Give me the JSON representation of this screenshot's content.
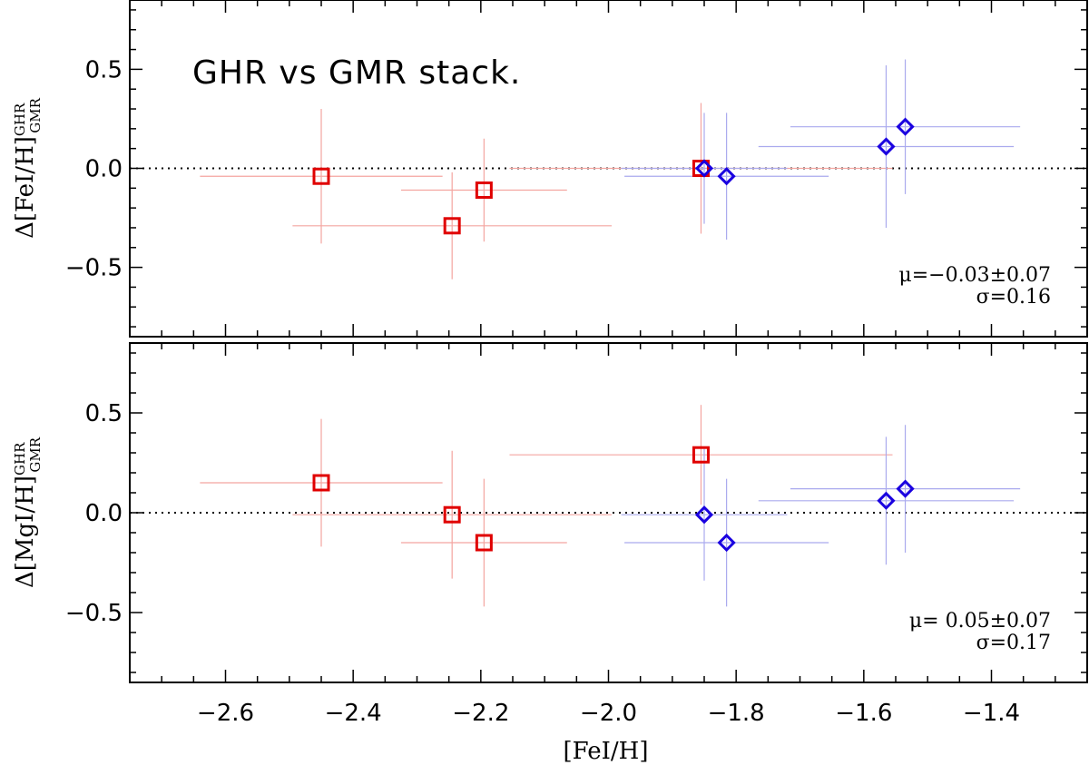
{
  "chart_data": {
    "type": "scatter",
    "annotation": "GHR vs GMR stack.",
    "xlabel": "[FeI/H]",
    "xlim": [
      -2.75,
      -1.25
    ],
    "xticks": [
      -2.6,
      -2.4,
      -2.2,
      -2.0,
      -1.8,
      -1.6,
      -1.4
    ],
    "xtick_labels": [
      "−2.6",
      "−2.4",
      "−2.2",
      "−2.0",
      "−1.8",
      "−1.6",
      "−1.4"
    ],
    "colors": {
      "red_series": "#e00000",
      "red_errorbar": "#f4a5a0",
      "blue_series": "#1a00e0",
      "blue_errorbar": "#aaaaee",
      "reference_line": "#000000"
    },
    "panels": [
      {
        "name": "top",
        "ylabel_prefix": "Δ[FeI/H]",
        "ylabel_sup": "GHR",
        "ylabel_sub": "GMR",
        "ylim": [
          -0.85,
          0.85
        ],
        "yticks": [
          -0.5,
          0.0,
          0.5
        ],
        "ytick_labels": [
          "−0.5",
          "0.0",
          "0.5"
        ],
        "stat_mu": "μ=−0.03±0.07",
        "stat_sigma": "σ=0.16",
        "series": [
          {
            "marker": "square",
            "points": [
              {
                "x": -2.45,
                "y": -0.04,
                "xerr": 0.19,
                "yerr": 0.34
              },
              {
                "x": -2.245,
                "y": -0.29,
                "xerr": 0.25,
                "yerr": 0.27
              },
              {
                "x": -2.195,
                "y": -0.11,
                "xerr": 0.13,
                "yerr": 0.26
              },
              {
                "x": -1.855,
                "y": 0.0,
                "xerr": 0.3,
                "yerr": 0.33
              }
            ]
          },
          {
            "marker": "diamond",
            "points": [
              {
                "x": -1.85,
                "y": 0.0,
                "xerr": 0.13,
                "yerr": 0.28
              },
              {
                "x": -1.815,
                "y": -0.04,
                "xerr": 0.16,
                "yerr": 0.32
              },
              {
                "x": -1.565,
                "y": 0.11,
                "xerr": 0.2,
                "yerr": 0.41
              },
              {
                "x": -1.535,
                "y": 0.21,
                "xerr": 0.18,
                "yerr": 0.34
              }
            ]
          }
        ]
      },
      {
        "name": "bottom",
        "ylabel_prefix": "Δ[MgI/H]",
        "ylabel_sup": "GHR",
        "ylabel_sub": "GMR",
        "ylim": [
          -0.85,
          0.85
        ],
        "yticks": [
          -0.5,
          0.0,
          0.5
        ],
        "ytick_labels": [
          "−0.5",
          "0.0",
          "0.5"
        ],
        "stat_mu": "μ= 0.05±0.07",
        "stat_sigma": "σ=0.17",
        "series": [
          {
            "marker": "square",
            "points": [
              {
                "x": -2.45,
                "y": 0.15,
                "xerr": 0.19,
                "yerr": 0.32
              },
              {
                "x": -2.245,
                "y": -0.01,
                "xerr": 0.25,
                "yerr": 0.32
              },
              {
                "x": -2.195,
                "y": -0.15,
                "xerr": 0.13,
                "yerr": 0.32
              },
              {
                "x": -1.855,
                "y": 0.29,
                "xerr": 0.3,
                "yerr": 0.25
              }
            ]
          },
          {
            "marker": "diamond",
            "points": [
              {
                "x": -1.85,
                "y": -0.01,
                "xerr": 0.13,
                "yerr": 0.33
              },
              {
                "x": -1.815,
                "y": -0.15,
                "xerr": 0.16,
                "yerr": 0.32
              },
              {
                "x": -1.565,
                "y": 0.06,
                "xerr": 0.2,
                "yerr": 0.32
              },
              {
                "x": -1.535,
                "y": 0.12,
                "xerr": 0.18,
                "yerr": 0.32
              }
            ]
          }
        ]
      }
    ]
  }
}
